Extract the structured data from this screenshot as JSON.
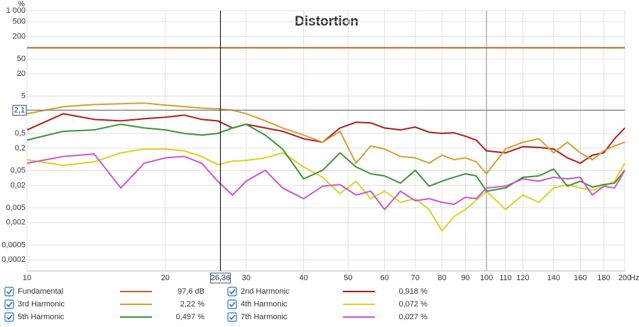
{
  "chart_data": {
    "type": "line",
    "title": "Distortion",
    "y_unit": "%",
    "x_unit": "Hz",
    "x_scale": "log",
    "y_scale": "log",
    "grid": true,
    "xlim": [
      10,
      200
    ],
    "ylim": [
      0.0001,
      1000
    ],
    "xticks": [
      10,
      20,
      30,
      40,
      50,
      60,
      70,
      80,
      90,
      100,
      110,
      120,
      140,
      160,
      180,
      200
    ],
    "yticks": [
      {
        "value": 1000,
        "label": "1 000"
      },
      {
        "value": 500,
        "label": "500"
      },
      200,
      50,
      20,
      5,
      {
        "value": 0.5,
        "label": "0,5"
      },
      {
        "value": 0.2,
        "label": "0,2"
      },
      {
        "value": 0.05,
        "label": "0,05"
      },
      {
        "value": 0.02,
        "label": "0,02"
      },
      {
        "value": 0.005,
        "label": "0,005"
      },
      {
        "value": 0.002,
        "label": "0,002"
      },
      {
        "value": 0.0005,
        "label": "0,0005"
      },
      {
        "value": 0.0002,
        "label": "0,0002"
      }
    ],
    "cursor": {
      "x": {
        "value": 26.36,
        "label": "26,36"
      },
      "y": {
        "value": 2.1,
        "label": "2,1"
      }
    },
    "x": [
      10,
      12,
      14,
      16,
      18,
      20,
      22,
      24,
      26,
      28,
      30,
      33,
      36,
      40,
      44,
      48,
      52,
      56,
      60,
      65,
      70,
      75,
      80,
      85,
      90,
      95,
      100,
      110,
      120,
      130,
      140,
      150,
      160,
      170,
      180,
      190,
      200
    ],
    "series": [
      {
        "name": "Fundamental",
        "color": "#b8672a",
        "legend_value": "97,6 dB",
        "values": [
          100,
          100,
          100,
          100,
          100,
          100,
          100,
          100,
          100,
          100,
          100,
          100,
          100,
          100,
          100,
          100,
          100,
          100,
          100,
          100,
          100,
          100,
          100,
          100,
          100,
          100,
          100,
          100,
          100,
          100,
          100,
          100,
          100,
          100,
          100,
          100,
          100
        ]
      },
      {
        "name": "2nd Harmonic",
        "color": "#b01c1c",
        "legend_value": "0,918 %",
        "values": [
          0.62,
          1.69,
          1.19,
          1.09,
          1.24,
          1.36,
          1.55,
          1.19,
          1.09,
          0.7,
          0.88,
          0.7,
          0.57,
          0.36,
          0.29,
          0.7,
          1.0,
          0.96,
          0.7,
          0.62,
          0.74,
          0.54,
          0.5,
          0.52,
          0.42,
          0.33,
          0.17,
          0.15,
          0.22,
          0.21,
          0.19,
          0.11,
          0.079,
          0.13,
          0.15,
          0.36,
          0.7
        ]
      },
      {
        "name": "3rd Harmonic",
        "color": "#d4a030",
        "legend_value": "2,22 %",
        "values": [
          1.69,
          2.62,
          2.99,
          3.13,
          3.27,
          2.87,
          2.62,
          2.4,
          2.3,
          2.11,
          1.69,
          1.09,
          0.7,
          0.45,
          0.29,
          0.57,
          0.079,
          0.23,
          0.19,
          0.12,
          0.11,
          0.079,
          0.13,
          0.098,
          0.11,
          0.086,
          0.041,
          0.19,
          0.29,
          0.36,
          0.15,
          0.29,
          0.15,
          0.098,
          0.17,
          0.23,
          0.29
        ]
      },
      {
        "name": "4th Harmonic",
        "color": "#e2cf1e",
        "legend_value": "0,072 %",
        "values": [
          0.098,
          0.069,
          0.086,
          0.15,
          0.19,
          0.19,
          0.17,
          0.12,
          0.072,
          0.09,
          0.094,
          0.11,
          0.15,
          0.063,
          0.033,
          0.012,
          0.026,
          0.0088,
          0.014,
          0.007,
          0.0088,
          0.0045,
          0.0012,
          0.0029,
          0.0045,
          0.008,
          0.014,
          0.0045,
          0.011,
          0.007,
          0.017,
          0.021,
          0.017,
          0.015,
          0.019,
          0.026,
          0.079
        ]
      },
      {
        "name": "5th Harmonic",
        "color": "#3a943a",
        "legend_value": "0,497 %",
        "values": [
          0.33,
          0.57,
          0.62,
          0.88,
          0.7,
          0.62,
          0.5,
          0.45,
          0.5,
          0.7,
          0.88,
          0.45,
          0.19,
          0.03,
          0.051,
          0.15,
          0.063,
          0.041,
          0.036,
          0.023,
          0.051,
          0.019,
          0.026,
          0.033,
          0.041,
          0.036,
          0.014,
          0.017,
          0.033,
          0.036,
          0.055,
          0.019,
          0.026,
          0.018,
          0.021,
          0.023,
          0.051
        ]
      },
      {
        "name": "7th Harmonic",
        "color": "#cc55cc",
        "legend_value": "0,027 %",
        "values": [
          0.079,
          0.12,
          0.14,
          0.017,
          0.079,
          0.11,
          0.12,
          0.079,
          0.026,
          0.011,
          0.026,
          0.051,
          0.017,
          0.0088,
          0.019,
          0.021,
          0.011,
          0.014,
          0.0045,
          0.014,
          0.0077,
          0.0088,
          0.007,
          0.0062,
          0.0096,
          0.0088,
          0.017,
          0.019,
          0.03,
          0.026,
          0.033,
          0.03,
          0.033,
          0.011,
          0.019,
          0.017,
          0.051
        ]
      }
    ]
  }
}
